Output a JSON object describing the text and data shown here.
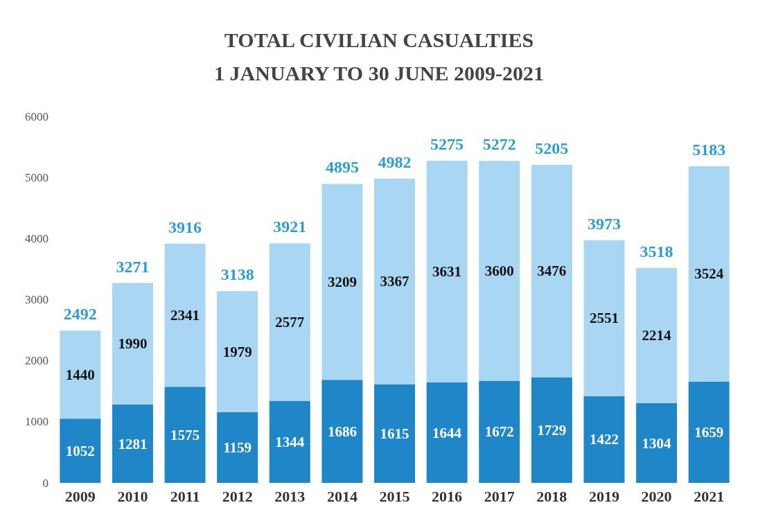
{
  "chart_data": {
    "type": "bar",
    "title": "TOTAL CIVILIAN CASUALTIES\n1 JANUARY TO 30 JUNE 2009-2021",
    "categories": [
      "2009",
      "2010",
      "2011",
      "2012",
      "2013",
      "2014",
      "2015",
      "2016",
      "2017",
      "2018",
      "2019",
      "2020",
      "2021"
    ],
    "series": [
      {
        "color": "#1f86c8",
        "values": [
          1052,
          1281,
          1575,
          1159,
          1344,
          1686,
          1615,
          1644,
          1672,
          1729,
          1422,
          1304,
          1659
        ]
      },
      {
        "color": "#a9d6f2",
        "values": [
          1440,
          1990,
          2341,
          1979,
          2577,
          3209,
          3367,
          3631,
          3600,
          3476,
          2551,
          2214,
          3524
        ]
      }
    ],
    "stacked": true,
    "data_labels": true,
    "totals": [
      "2492",
      "3271",
      "3916",
      "3138",
      "3921",
      "4895",
      "4982",
      "5275",
      "5272",
      "5205",
      "3973",
      "3518",
      "5183"
    ],
    "ylim": [
      0,
      6000
    ],
    "yticks": [
      0,
      1000,
      2000,
      3000,
      4000,
      5000,
      6000
    ],
    "grid": false
  }
}
